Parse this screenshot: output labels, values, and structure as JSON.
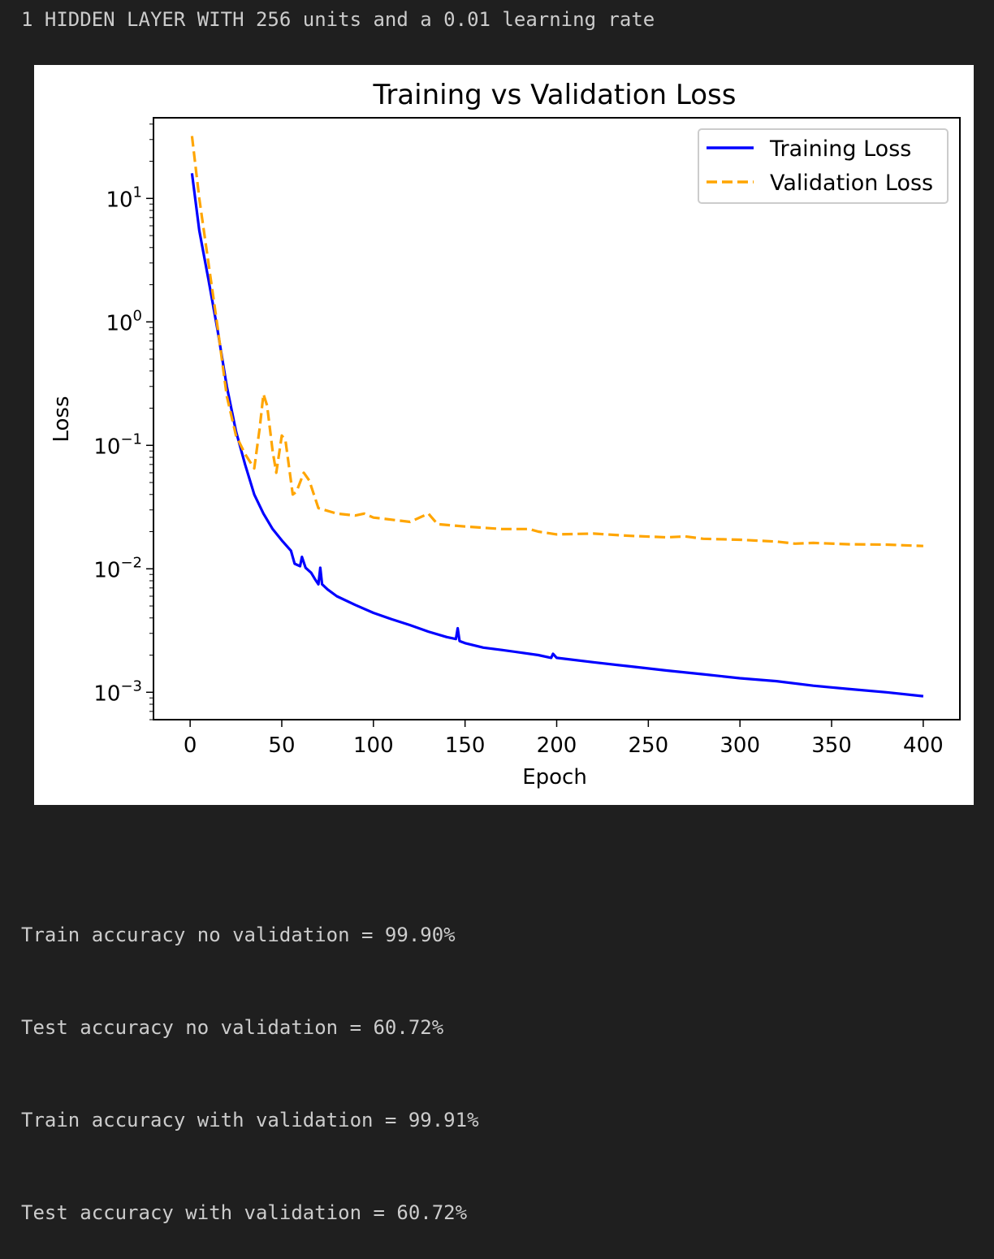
{
  "output": {
    "heading": "1 HIDDEN LAYER WITH 256 units and a 0.01 learning rate",
    "results": [
      "Train accuracy no validation = 99.90%",
      "Test accuracy no validation = 60.72%",
      "Train accuracy with validation = 99.91%",
      "Test accuracy with validation = 60.72%"
    ]
  },
  "chart_data": {
    "type": "line",
    "title": "Training vs Validation Loss",
    "xlabel": "Epoch",
    "ylabel": "Loss",
    "yscale": "log",
    "xlim": [
      -20,
      420
    ],
    "ylim": [
      0.0006,
      45
    ],
    "xticks": [
      0,
      50,
      100,
      150,
      200,
      250,
      300,
      350,
      400
    ],
    "yticks": [
      {
        "value": 0.001,
        "base": "10",
        "exp": "−3"
      },
      {
        "value": 0.01,
        "base": "10",
        "exp": "−2"
      },
      {
        "value": 0.1,
        "base": "10",
        "exp": "−1"
      },
      {
        "value": 1,
        "base": "10",
        "exp": "0"
      },
      {
        "value": 10,
        "base": "10",
        "exp": "1"
      }
    ],
    "legend_position": "top-right",
    "series": [
      {
        "name": "Training Loss",
        "color": "#0000ff",
        "style": "solid",
        "points": [
          [
            1,
            16
          ],
          [
            5,
            5.5
          ],
          [
            10,
            2.2
          ],
          [
            15,
            0.85
          ],
          [
            20,
            0.3
          ],
          [
            25,
            0.13
          ],
          [
            30,
            0.07
          ],
          [
            35,
            0.04
          ],
          [
            40,
            0.028
          ],
          [
            45,
            0.021
          ],
          [
            50,
            0.017
          ],
          [
            55,
            0.014
          ],
          [
            57,
            0.011
          ],
          [
            60,
            0.0105
          ],
          [
            61,
            0.0125
          ],
          [
            63,
            0.0102
          ],
          [
            66,
            0.0093
          ],
          [
            68,
            0.0083
          ],
          [
            70,
            0.0075
          ],
          [
            71,
            0.0102
          ],
          [
            72,
            0.0075
          ],
          [
            75,
            0.0068
          ],
          [
            80,
            0.006
          ],
          [
            90,
            0.0051
          ],
          [
            100,
            0.0044
          ],
          [
            110,
            0.0039
          ],
          [
            120,
            0.0035
          ],
          [
            130,
            0.0031
          ],
          [
            140,
            0.0028
          ],
          [
            145,
            0.0027
          ],
          [
            146,
            0.0033
          ],
          [
            147,
            0.0026
          ],
          [
            150,
            0.0025
          ],
          [
            160,
            0.0023
          ],
          [
            170,
            0.0022
          ],
          [
            180,
            0.0021
          ],
          [
            190,
            0.002
          ],
          [
            197,
            0.0019
          ],
          [
            198,
            0.00205
          ],
          [
            200,
            0.0019
          ],
          [
            220,
            0.00175
          ],
          [
            240,
            0.00162
          ],
          [
            260,
            0.0015
          ],
          [
            280,
            0.0014
          ],
          [
            300,
            0.0013
          ],
          [
            320,
            0.00123
          ],
          [
            340,
            0.00113
          ],
          [
            360,
            0.00106
          ],
          [
            380,
            0.001
          ],
          [
            400,
            0.00093
          ]
        ]
      },
      {
        "name": "Validation Loss",
        "color": "#ffa500",
        "style": "dashed",
        "points": [
          [
            1,
            32
          ],
          [
            5,
            10
          ],
          [
            10,
            3
          ],
          [
            15,
            0.9
          ],
          [
            20,
            0.25
          ],
          [
            25,
            0.12
          ],
          [
            30,
            0.085
          ],
          [
            35,
            0.065
          ],
          [
            38,
            0.14
          ],
          [
            40,
            0.26
          ],
          [
            42,
            0.21
          ],
          [
            45,
            0.09
          ],
          [
            47,
            0.06
          ],
          [
            50,
            0.12
          ],
          [
            52,
            0.11
          ],
          [
            56,
            0.04
          ],
          [
            58,
            0.042
          ],
          [
            62,
            0.06
          ],
          [
            65,
            0.052
          ],
          [
            70,
            0.031
          ],
          [
            80,
            0.028
          ],
          [
            90,
            0.027
          ],
          [
            95,
            0.028
          ],
          [
            100,
            0.026
          ],
          [
            110,
            0.025
          ],
          [
            120,
            0.024
          ],
          [
            130,
            0.028
          ],
          [
            135,
            0.023
          ],
          [
            150,
            0.022
          ],
          [
            170,
            0.021
          ],
          [
            185,
            0.021
          ],
          [
            190,
            0.02
          ],
          [
            200,
            0.019
          ],
          [
            220,
            0.0193
          ],
          [
            240,
            0.0185
          ],
          [
            260,
            0.018
          ],
          [
            270,
            0.0183
          ],
          [
            280,
            0.0175
          ],
          [
            300,
            0.0172
          ],
          [
            320,
            0.0166
          ],
          [
            330,
            0.016
          ],
          [
            340,
            0.0162
          ],
          [
            360,
            0.0158
          ],
          [
            380,
            0.0157
          ],
          [
            400,
            0.0153
          ]
        ]
      }
    ]
  }
}
